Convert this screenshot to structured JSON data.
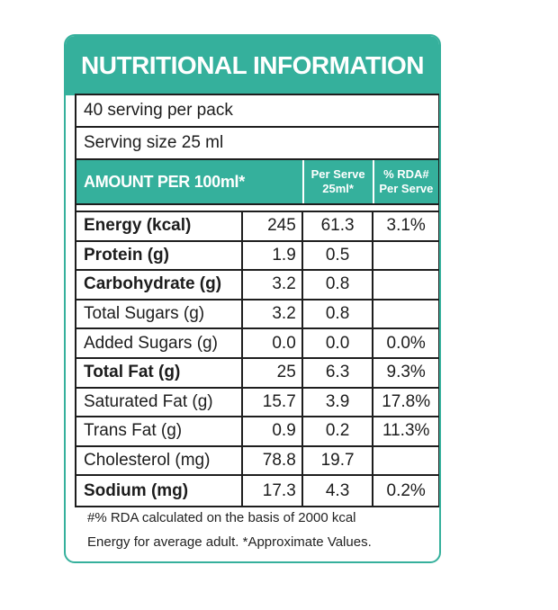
{
  "title": "NUTRITIONAL INFORMATION",
  "servings_per_pack": "40 serving per pack",
  "serving_size": "Serving size 25 ml",
  "header": {
    "amount": "AMOUNT PER 100ml*",
    "per_serve_line1": "Per Serve",
    "per_serve_line2": "25ml*",
    "rda_line1": "% RDA#",
    "rda_line2": "Per Serve"
  },
  "nutrients": [
    {
      "name": "Energy (kcal)",
      "per100": "245",
      "perServe": "61.3",
      "rda": "3.1%",
      "bold": true
    },
    {
      "name": "Protein (g)",
      "per100": "1.9",
      "perServe": "0.5",
      "rda": "",
      "bold": true
    },
    {
      "name": "Carbohydrate (g)",
      "per100": "3.2",
      "perServe": "0.8",
      "rda": "",
      "bold": true
    },
    {
      "name": "Total Sugars (g)",
      "per100": "3.2",
      "perServe": "0.8",
      "rda": "",
      "bold": false
    },
    {
      "name": "Added Sugars (g)",
      "per100": "0.0",
      "perServe": "0.0",
      "rda": "0.0%",
      "bold": false
    },
    {
      "name": "Total Fat (g)",
      "per100": "25",
      "perServe": "6.3",
      "rda": "9.3%",
      "bold": true
    },
    {
      "name": "Saturated Fat (g)",
      "per100": "15.7",
      "perServe": "3.9",
      "rda": "17.8%",
      "bold": false
    },
    {
      "name": "Trans Fat (g)",
      "per100": "0.9",
      "perServe": "0.2",
      "rda": "11.3%",
      "bold": false
    },
    {
      "name": "Cholesterol (mg)",
      "per100": "78.8",
      "perServe": "19.7",
      "rda": "",
      "bold": false
    },
    {
      "name": "Sodium (mg)",
      "per100": "17.3",
      "perServe": "4.3",
      "rda": "0.2%",
      "bold": true
    }
  ],
  "footnote_line1": "#% RDA calculated on the basis of 2000 kcal",
  "footnote_line2": "Energy for average adult. *Approximate Values.",
  "colors": {
    "accent": "#35b09c",
    "border": "#1e1e1e"
  }
}
